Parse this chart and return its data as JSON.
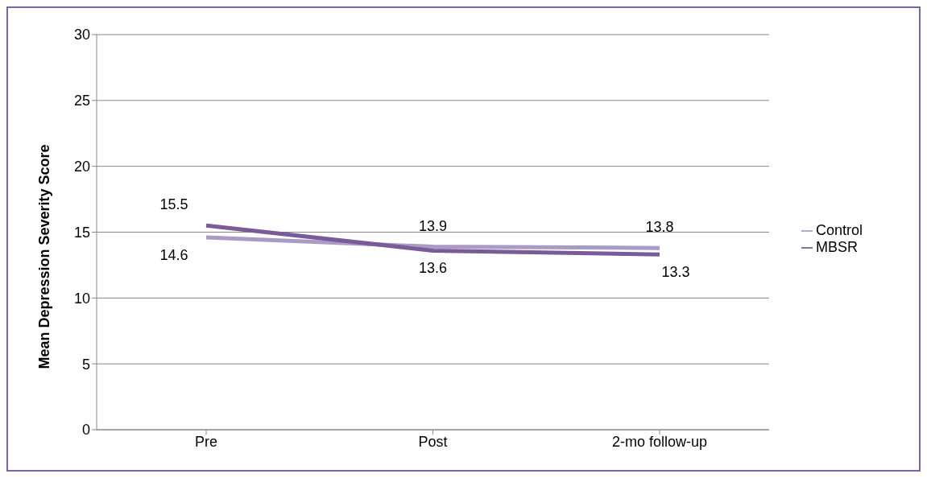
{
  "chart_data": {
    "type": "line",
    "ylabel": "Mean Depression Severity Score",
    "categories": [
      "Pre",
      "Post",
      "2-mo follow-up"
    ],
    "series": [
      {
        "name": "Control",
        "color": "#a99bc6",
        "values": [
          14.6,
          13.9,
          13.8
        ]
      },
      {
        "name": "MBSR",
        "color": "#7a5a98",
        "values": [
          15.5,
          13.6,
          13.3
        ]
      }
    ],
    "ylim": [
      0,
      30
    ],
    "yticks": [
      0,
      5,
      10,
      15,
      20,
      25,
      30
    ],
    "grid": "y",
    "legend": "right",
    "marker": "none",
    "line_style": "solid",
    "data_labels": true
  }
}
